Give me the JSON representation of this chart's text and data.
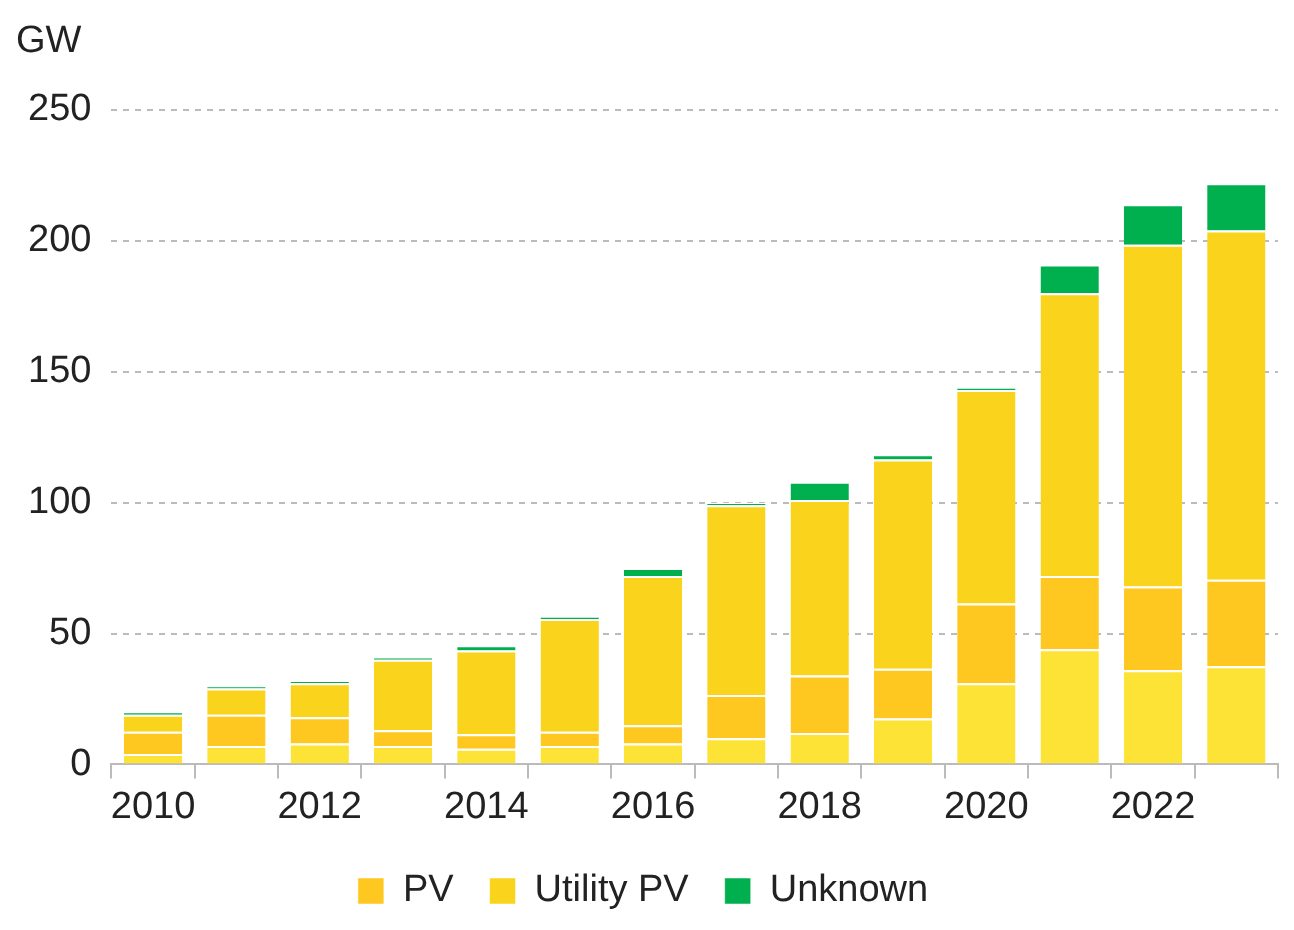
{
  "chart_data": {
    "type": "bar",
    "stacked": true,
    "ylabel": "GW",
    "categories": [
      "2010",
      null,
      "2012",
      null,
      "2014",
      null,
      "2016",
      null,
      "2018",
      null,
      "2020",
      null,
      "2022",
      null
    ],
    "series": [
      {
        "color": "#fde335",
        "values": [
          4,
          7,
          8,
          7,
          6,
          7,
          8,
          10,
          12,
          17.5,
          31,
          44,
          36,
          37.5
        ]
      },
      {
        "name": "PV",
        "color": "#fec820",
        "values": [
          8.5,
          12,
          10,
          6,
          5.5,
          5.5,
          7,
          16.5,
          22,
          19,
          30.5,
          28,
          32,
          33
        ]
      },
      {
        "name": "Utility PV",
        "color": "#f9d31c",
        "values": [
          6.5,
          10,
          13,
          27,
          32,
          43,
          57,
          72.5,
          67,
          80,
          81.5,
          108,
          130.5,
          133.5
        ]
      },
      {
        "name": "Unknown",
        "color": "#00b04f",
        "values": [
          1,
          1,
          1,
          1,
          2,
          1,
          3,
          1,
          7,
          2,
          1,
          11,
          15.5,
          18
        ]
      }
    ],
    "ylim": [
      0,
      250
    ],
    "yticks": [
      0,
      50,
      100,
      150,
      200,
      250
    ],
    "grid": "y",
    "legend": "bottom"
  }
}
